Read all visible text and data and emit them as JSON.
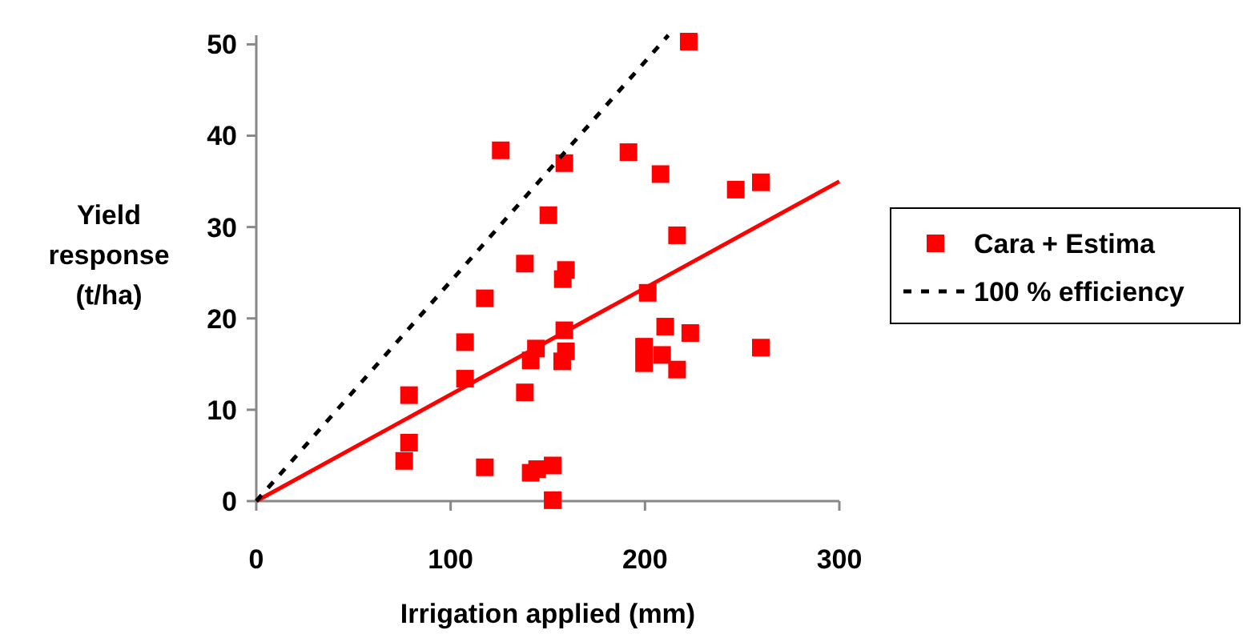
{
  "chart_data": {
    "type": "scatter",
    "xlabel": "Irrigation applied (mm)",
    "ylabel": "Yield response (t/ha)",
    "xlim": [
      0,
      300
    ],
    "ylim": [
      0,
      51
    ],
    "xticks": [
      0,
      100,
      200,
      300
    ],
    "yticks": [
      0,
      10,
      20,
      30,
      40,
      50
    ],
    "grid": false,
    "legend": "right",
    "marker": "square",
    "series": [
      {
        "name": "Cara + Estima",
        "color": "#ff0000",
        "x": [
          222.5,
          125.8,
          191.5,
          158.5,
          208,
          246.7,
          259.6,
          150.3,
          216.5,
          138.2,
          159.3,
          157.7,
          117.6,
          201.4,
          210.4,
          223.3,
          158.5,
          107.4,
          143.9,
          199.5,
          159.3,
          259.6,
          208.8,
          141.2,
          157.4,
          199.5,
          216.5,
          107.4,
          138.2,
          78.6,
          78.6,
          76.1,
          117.6,
          141.2,
          144.5,
          152.5,
          152.5
        ],
        "values": [
          50.3,
          38.4,
          38.2,
          37.0,
          35.8,
          34.1,
          34.9,
          31.3,
          29.1,
          26.0,
          25.3,
          24.3,
          22.2,
          22.8,
          19.1,
          18.4,
          18.7,
          17.4,
          16.7,
          16.9,
          16.4,
          16.8,
          16.0,
          15.4,
          15.3,
          15.1,
          14.4,
          13.4,
          11.9,
          11.6,
          6.4,
          4.4,
          3.7,
          3.1,
          3.5,
          3.9,
          0.1
        ]
      },
      {
        "type": "line",
        "color": "#ff0000",
        "line_style": "solid",
        "marker": "none",
        "x": [
          0,
          300
        ],
        "values": [
          0,
          35
        ]
      },
      {
        "name": "100 % efficiency",
        "type": "line",
        "color": "#000000",
        "line_style": "dashed",
        "marker": "none",
        "x": [
          0,
          212
        ],
        "values": [
          0,
          51
        ]
      }
    ]
  }
}
